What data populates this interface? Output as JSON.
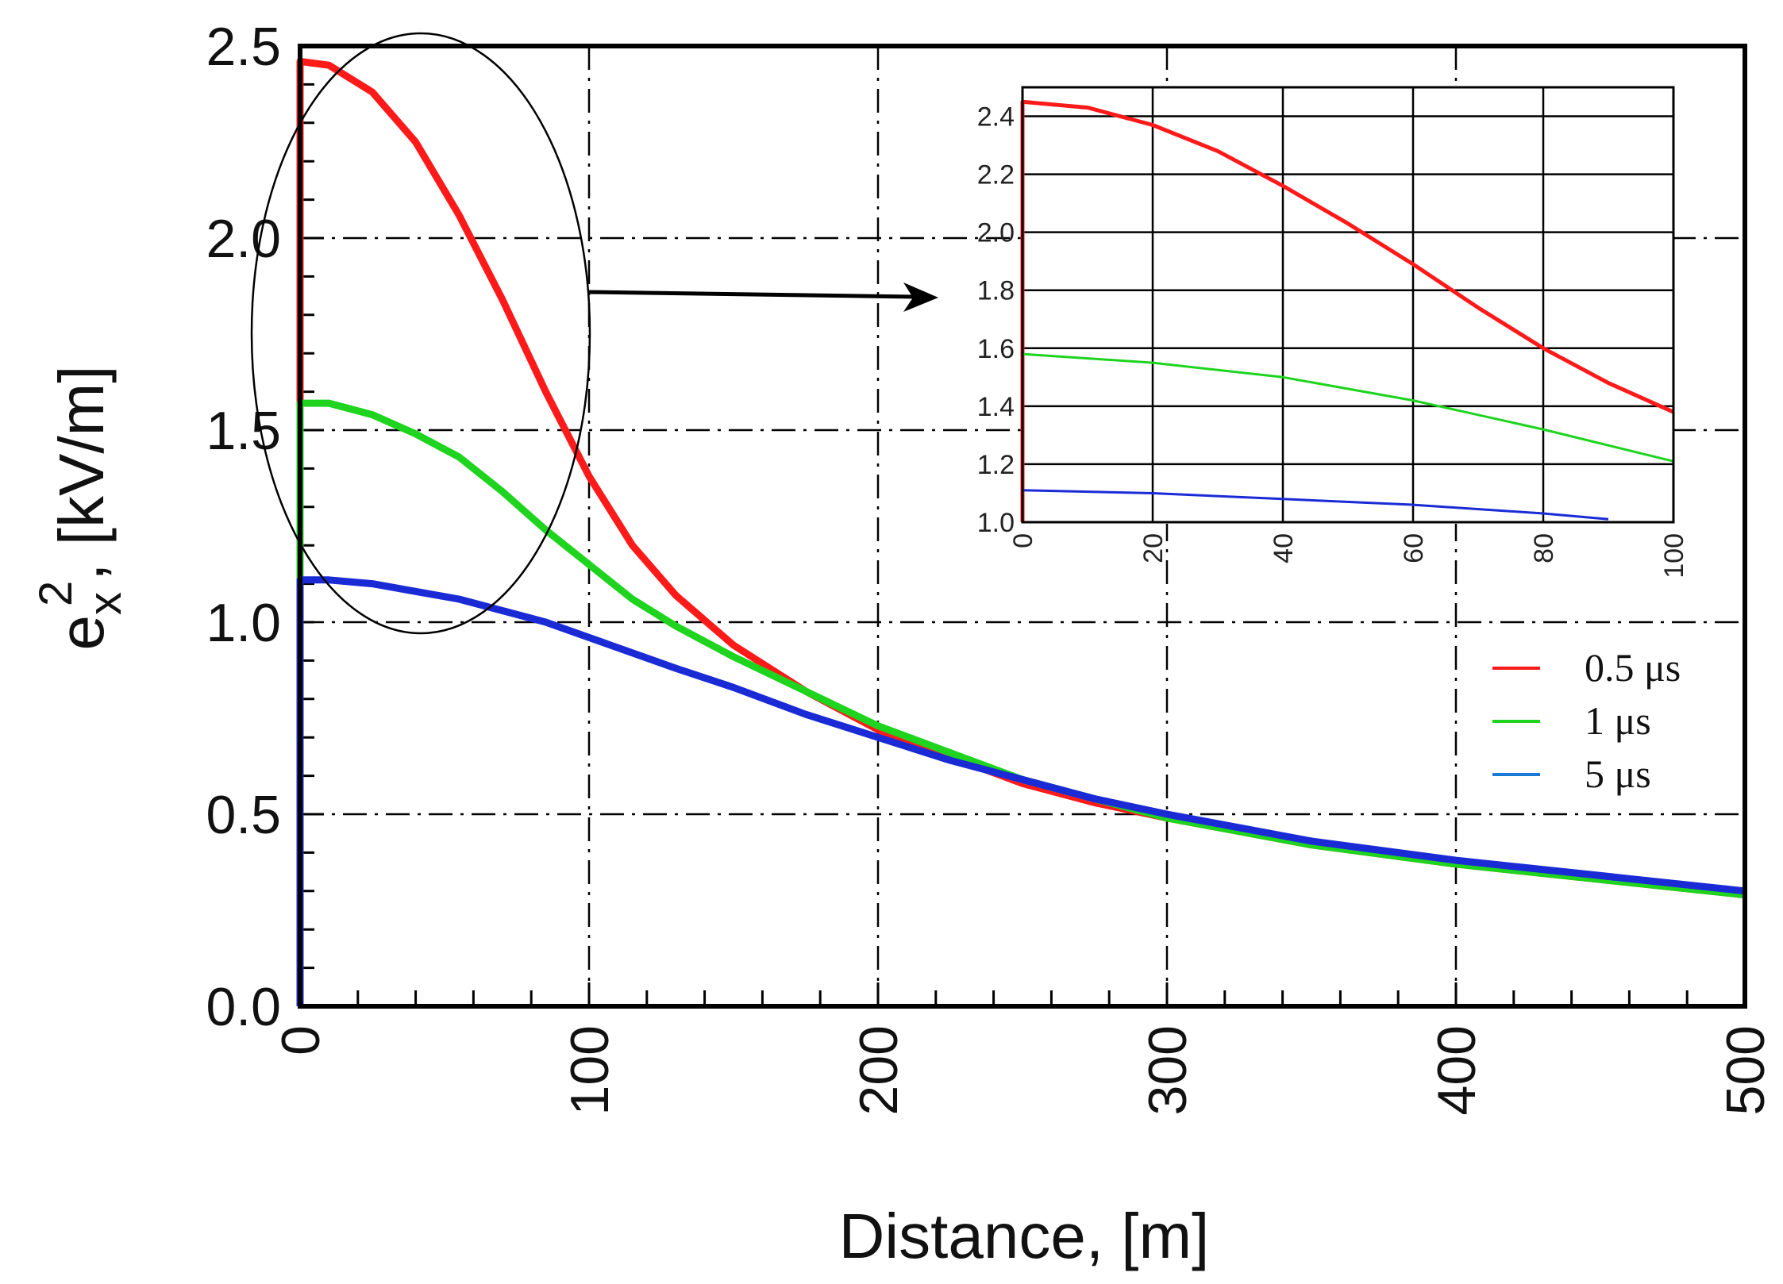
{
  "chart_data": [
    {
      "id": "main",
      "type": "line",
      "xlabel": "Distance, [m]",
      "ylabel_base": "e",
      "ylabel_subscript": "x",
      "ylabel_superscript": "2",
      "ylabel_rest": ", [kV/m]",
      "xlim": [
        0,
        500
      ],
      "ylim": [
        0,
        2.5
      ],
      "x_ticks": [
        0,
        100,
        200,
        300,
        400,
        500
      ],
      "x_tick_labels": [
        "0",
        "100",
        "200",
        "300",
        "400",
        "500"
      ],
      "y_ticks": [
        0,
        0.5,
        1,
        1.5,
        2,
        2.5
      ],
      "y_tick_labels": [
        "0.0",
        "0.5",
        "1.0",
        "1.5",
        "2.0",
        "2.5"
      ],
      "grid": true,
      "legend_position": "right",
      "series": [
        {
          "name": "0.5 μs",
          "color": "#ff1a1a",
          "x": [
            0,
            0,
            10,
            25,
            40,
            55,
            70,
            85,
            100,
            115,
            130,
            150,
            175,
            200,
            225,
            250,
            275,
            300,
            350,
            400,
            450,
            500
          ],
          "y": [
            0,
            2.46,
            2.45,
            2.38,
            2.25,
            2.06,
            1.84,
            1.6,
            1.38,
            1.2,
            1.07,
            0.94,
            0.82,
            0.72,
            0.65,
            0.58,
            0.53,
            0.49,
            0.42,
            0.37,
            0.33,
            0.29
          ]
        },
        {
          "name": "1 μs",
          "color": "#1ed41e",
          "x": [
            0,
            0,
            10,
            25,
            40,
            55,
            70,
            85,
            100,
            115,
            130,
            150,
            175,
            200,
            225,
            250,
            275,
            300,
            350,
            400,
            450,
            500
          ],
          "y": [
            0,
            1.57,
            1.57,
            1.54,
            1.49,
            1.43,
            1.34,
            1.24,
            1.15,
            1.06,
            0.99,
            0.91,
            0.82,
            0.73,
            0.66,
            0.59,
            0.54,
            0.49,
            0.42,
            0.37,
            0.33,
            0.29
          ]
        },
        {
          "name": "5 μs",
          "color": "#1a2bd6",
          "x": [
            0,
            0,
            10,
            25,
            40,
            55,
            70,
            85,
            100,
            115,
            130,
            150,
            175,
            200,
            225,
            250,
            275,
            300,
            350,
            400,
            450,
            500
          ],
          "y": [
            0,
            1.11,
            1.11,
            1.1,
            1.08,
            1.06,
            1.03,
            1.0,
            0.96,
            0.92,
            0.88,
            0.83,
            0.76,
            0.7,
            0.64,
            0.59,
            0.54,
            0.5,
            0.43,
            0.38,
            0.34,
            0.3
          ]
        }
      ],
      "annotations": [
        "ellipse highlighting region 0–100 m",
        "arrow pointing to inset"
      ]
    },
    {
      "id": "inset",
      "type": "line",
      "xlim": [
        0,
        100
      ],
      "ylim": [
        1.0,
        2.5
      ],
      "x_ticks": [
        0,
        20,
        40,
        60,
        80,
        100
      ],
      "x_tick_labels": [
        "0",
        "20",
        "40",
        "60",
        "80",
        "100"
      ],
      "y_ticks": [
        1.0,
        1.2,
        1.4,
        1.6,
        1.8,
        2.0,
        2.2,
        2.4
      ],
      "y_tick_labels": [
        "1.0",
        "1.2",
        "1.4",
        "1.6",
        "1.8",
        "2.0",
        "2.2",
        "2.4"
      ],
      "grid": true,
      "series": [
        {
          "name": "0.5 μs",
          "color": "#ff1a1a",
          "x": [
            0,
            0,
            10,
            20,
            30,
            40,
            50,
            60,
            70,
            80,
            90,
            100
          ],
          "y": [
            1.0,
            2.45,
            2.43,
            2.37,
            2.28,
            2.16,
            2.03,
            1.89,
            1.74,
            1.6,
            1.48,
            1.38
          ]
        },
        {
          "name": "1 μs",
          "color": "#1ed41e",
          "x": [
            0,
            0,
            20,
            40,
            60,
            80,
            100
          ],
          "y": [
            1.0,
            1.58,
            1.55,
            1.5,
            1.42,
            1.32,
            1.21
          ]
        },
        {
          "name": "5 μs",
          "color": "#1a2bd6",
          "x": [
            0,
            0,
            20,
            40,
            60,
            80,
            90
          ],
          "y": [
            1.0,
            1.11,
            1.1,
            1.08,
            1.06,
            1.03,
            1.01
          ]
        }
      ]
    }
  ]
}
